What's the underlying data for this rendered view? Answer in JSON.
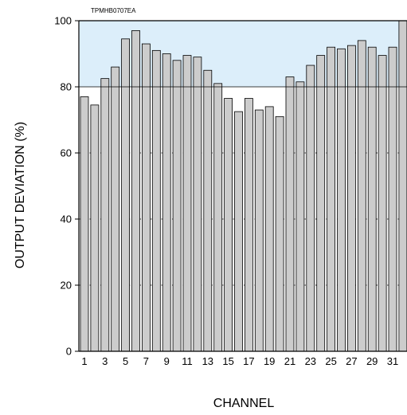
{
  "chart_data": {
    "type": "bar",
    "code": "TPMHB0707EA",
    "xlabel": "CHANNEL",
    "ylabel": "OUTPUT DEVIATION (%)",
    "ylim": [
      0,
      100
    ],
    "yticks": [
      0,
      20,
      40,
      60,
      80,
      100
    ],
    "shaded_band": [
      80,
      100
    ],
    "reference_line": 80,
    "grid": "dotted-horizontal",
    "categories": [
      "1",
      "2",
      "3",
      "4",
      "5",
      "6",
      "7",
      "8",
      "9",
      "10",
      "11",
      "12",
      "13",
      "14",
      "15",
      "16",
      "17",
      "18",
      "19",
      "20",
      "21",
      "22",
      "23",
      "24",
      "25",
      "26",
      "27",
      "28",
      "29",
      "30",
      "31",
      "32"
    ],
    "xtick_labels": [
      "1",
      "3",
      "5",
      "7",
      "9",
      "11",
      "13",
      "15",
      "17",
      "19",
      "21",
      "23",
      "25",
      "27",
      "29",
      "31"
    ],
    "values": [
      77,
      74.5,
      82.5,
      86,
      94.5,
      97,
      93,
      91,
      90,
      88,
      89.5,
      89,
      85,
      81,
      76.5,
      72.5,
      76.5,
      73,
      74,
      71,
      83,
      81.5,
      86.5,
      89.5,
      92,
      91.5,
      92.5,
      94,
      92,
      89.5,
      92,
      100
    ],
    "colors": {
      "bar_fill": "#cccccc",
      "bar_stroke": "#000000",
      "band_fill": "#dceefa",
      "axis": "#000000"
    }
  }
}
